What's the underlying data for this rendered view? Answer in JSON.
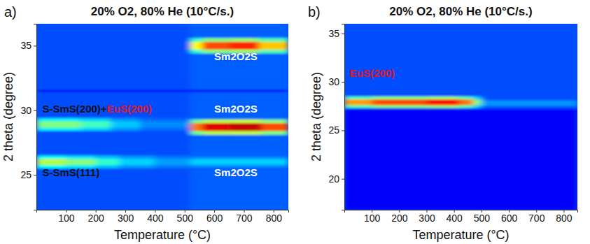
{
  "chart_data": [
    {
      "type": "heatmap",
      "label": "a)",
      "title": "20% O2, 80% He (10°C/s.)",
      "x_label": "Temperature (°C)",
      "y_label": "2 theta (degree)",
      "xlim": [
        0,
        850
      ],
      "xticks": [
        100,
        200,
        300,
        400,
        500,
        600,
        700,
        800
      ],
      "ylim": [
        22.3,
        36.7
      ],
      "yticks": [
        25,
        30,
        35
      ],
      "zlim": [
        0,
        1
      ],
      "cells": [
        {
          "t0": 0,
          "t1": 520,
          "theta0": 22.3,
          "theta1": 36.7,
          "intensity": 0.2
        },
        {
          "t0": 520,
          "t1": 850,
          "theta0": 22.3,
          "theta1": 36.7,
          "intensity": 0.22
        },
        {
          "t0": 0,
          "t1": 850,
          "theta0": 31.4,
          "theta1": 31.6,
          "intensity": 0.14
        },
        {
          "t0": 0,
          "t1": 100,
          "theta0": 25.5,
          "theta1": 26.5,
          "intensity": 0.38
        },
        {
          "t0": 100,
          "t1": 200,
          "theta0": 25.5,
          "theta1": 26.5,
          "intensity": 0.35
        },
        {
          "t0": 200,
          "t1": 280,
          "theta0": 25.5,
          "theta1": 26.5,
          "intensity": 0.31
        },
        {
          "t0": 280,
          "t1": 400,
          "theta0": 25.5,
          "theta1": 26.5,
          "intensity": 0.27
        },
        {
          "t0": 400,
          "t1": 520,
          "theta0": 25.5,
          "theta1": 26.5,
          "intensity": 0.24
        },
        {
          "t0": 0,
          "t1": 100,
          "theta0": 25.75,
          "theta1": 26.25,
          "intensity": 0.55
        },
        {
          "t0": 100,
          "t1": 200,
          "theta0": 25.75,
          "theta1": 26.25,
          "intensity": 0.5
        },
        {
          "t0": 200,
          "t1": 280,
          "theta0": 25.75,
          "theta1": 26.25,
          "intensity": 0.42
        },
        {
          "t0": 280,
          "t1": 400,
          "theta0": 25.75,
          "theta1": 26.25,
          "intensity": 0.33
        },
        {
          "t0": 400,
          "t1": 520,
          "theta0": 25.75,
          "theta1": 26.25,
          "intensity": 0.28
        },
        {
          "t0": 0,
          "t1": 150,
          "theta0": 28.4,
          "theta1": 29.4,
          "intensity": 0.36
        },
        {
          "t0": 150,
          "t1": 250,
          "theta0": 28.4,
          "theta1": 29.4,
          "intensity": 0.33
        },
        {
          "t0": 250,
          "t1": 350,
          "theta0": 28.4,
          "theta1": 29.4,
          "intensity": 0.27
        },
        {
          "t0": 350,
          "t1": 520,
          "theta0": 28.4,
          "theta1": 29.4,
          "intensity": 0.23
        },
        {
          "t0": 0,
          "t1": 150,
          "theta0": 28.65,
          "theta1": 29.15,
          "intensity": 0.5
        },
        {
          "t0": 150,
          "t1": 250,
          "theta0": 28.65,
          "theta1": 29.15,
          "intensity": 0.44
        },
        {
          "t0": 250,
          "t1": 350,
          "theta0": 28.65,
          "theta1": 29.15,
          "intensity": 0.32
        },
        {
          "t0": 350,
          "t1": 520,
          "theta0": 28.65,
          "theta1": 29.15,
          "intensity": 0.26
        },
        {
          "t0": 520,
          "t1": 560,
          "theta0": 34.4,
          "theta1": 35.6,
          "intensity": 0.42
        },
        {
          "t0": 560,
          "t1": 650,
          "theta0": 34.4,
          "theta1": 35.6,
          "intensity": 0.5
        },
        {
          "t0": 650,
          "t1": 750,
          "theta0": 34.4,
          "theta1": 35.6,
          "intensity": 0.52
        },
        {
          "t0": 750,
          "t1": 850,
          "theta0": 34.4,
          "theta1": 35.6,
          "intensity": 0.45
        },
        {
          "t0": 520,
          "t1": 560,
          "theta0": 34.7,
          "theta1": 35.3,
          "intensity": 0.62
        },
        {
          "t0": 560,
          "t1": 650,
          "theta0": 34.7,
          "theta1": 35.3,
          "intensity": 0.8
        },
        {
          "t0": 650,
          "t1": 750,
          "theta0": 34.7,
          "theta1": 35.3,
          "intensity": 0.84
        },
        {
          "t0": 750,
          "t1": 850,
          "theta0": 34.7,
          "theta1": 35.3,
          "intensity": 0.68
        },
        {
          "t0": 520,
          "t1": 560,
          "theta0": 28.1,
          "theta1": 29.3,
          "intensity": 0.48
        },
        {
          "t0": 560,
          "t1": 650,
          "theta0": 28.1,
          "theta1": 29.3,
          "intensity": 0.55
        },
        {
          "t0": 650,
          "t1": 760,
          "theta0": 28.1,
          "theta1": 29.3,
          "intensity": 0.56
        },
        {
          "t0": 760,
          "t1": 850,
          "theta0": 28.1,
          "theta1": 29.3,
          "intensity": 0.5
        },
        {
          "t0": 520,
          "t1": 560,
          "theta0": 28.4,
          "theta1": 29.0,
          "intensity": 0.76
        },
        {
          "t0": 560,
          "t1": 650,
          "theta0": 28.4,
          "theta1": 29.0,
          "intensity": 0.9
        },
        {
          "t0": 650,
          "t1": 760,
          "theta0": 28.4,
          "theta1": 29.0,
          "intensity": 0.93
        },
        {
          "t0": 760,
          "t1": 850,
          "theta0": 28.4,
          "theta1": 29.0,
          "intensity": 0.8
        },
        {
          "t0": 520,
          "t1": 850,
          "theta0": 25.6,
          "theta1": 26.4,
          "intensity": 0.27
        },
        {
          "t0": 520,
          "t1": 850,
          "theta0": 25.8,
          "theta1": 26.2,
          "intensity": 0.33
        }
      ],
      "annotations": [
        {
          "parts": [
            {
              "text": "S-SmS(200)+",
              "color": "#111111"
            },
            {
              "text": "EuS(200)",
              "color": "#e8141c"
            }
          ],
          "x": 20,
          "y": 29.8
        },
        {
          "text": "S-SmS(111)",
          "x": 20,
          "y": 24.9,
          "color": "#111111"
        },
        {
          "text": "Sm2O2S",
          "x": 600,
          "y": 33.9,
          "color": "#ffffff"
        },
        {
          "text": "Sm2O2S",
          "x": 600,
          "y": 29.8,
          "color": "#ffffff"
        },
        {
          "text": "Sm2O2S",
          "x": 600,
          "y": 24.9,
          "color": "#ffffff"
        }
      ]
    },
    {
      "type": "heatmap",
      "label": "b)",
      "title": "20% O2, 80% He (10°C/s.)",
      "x_label": "Temperature (°C)",
      "y_label": "2 theta (degree)",
      "xlim": [
        0,
        850
      ],
      "xticks": [
        100,
        200,
        300,
        400,
        500,
        600,
        700,
        800
      ],
      "ylim": [
        16.8,
        36
      ],
      "yticks": [
        20,
        25,
        30,
        35
      ],
      "zlim": [
        0,
        1
      ],
      "cells": [
        {
          "t0": 0,
          "t1": 850,
          "theta0": 27.2,
          "theta1": 36,
          "intensity": 0.2
        },
        {
          "t0": 0,
          "t1": 850,
          "theta0": 16.8,
          "theta1": 27.2,
          "intensity": 0.12
        },
        {
          "t0": 0,
          "t1": 100,
          "theta0": 27.3,
          "theta1": 28.5,
          "intensity": 0.45
        },
        {
          "t0": 100,
          "t1": 300,
          "theta0": 27.3,
          "theta1": 28.5,
          "intensity": 0.5
        },
        {
          "t0": 300,
          "t1": 420,
          "theta0": 27.3,
          "theta1": 28.5,
          "intensity": 0.52
        },
        {
          "t0": 420,
          "t1": 470,
          "theta0": 27.3,
          "theta1": 28.5,
          "intensity": 0.46
        },
        {
          "t0": 470,
          "t1": 500,
          "theta0": 27.3,
          "theta1": 28.5,
          "intensity": 0.32
        },
        {
          "t0": 0,
          "t1": 100,
          "theta0": 27.6,
          "theta1": 28.2,
          "intensity": 0.72
        },
        {
          "t0": 100,
          "t1": 300,
          "theta0": 27.6,
          "theta1": 28.2,
          "intensity": 0.8
        },
        {
          "t0": 300,
          "t1": 420,
          "theta0": 27.6,
          "theta1": 28.2,
          "intensity": 0.86
        },
        {
          "t0": 420,
          "t1": 470,
          "theta0": 27.6,
          "theta1": 28.2,
          "intensity": 0.76
        },
        {
          "t0": 470,
          "t1": 500,
          "theta0": 27.6,
          "theta1": 28.2,
          "intensity": 0.5
        },
        {
          "t0": 500,
          "t1": 850,
          "theta0": 27.5,
          "theta1": 28.1,
          "intensity": 0.27
        }
      ],
      "annotations": [
        {
          "text": "EuS(200)",
          "x": 20,
          "y": 30.5,
          "color": "#e8141c"
        }
      ]
    }
  ]
}
